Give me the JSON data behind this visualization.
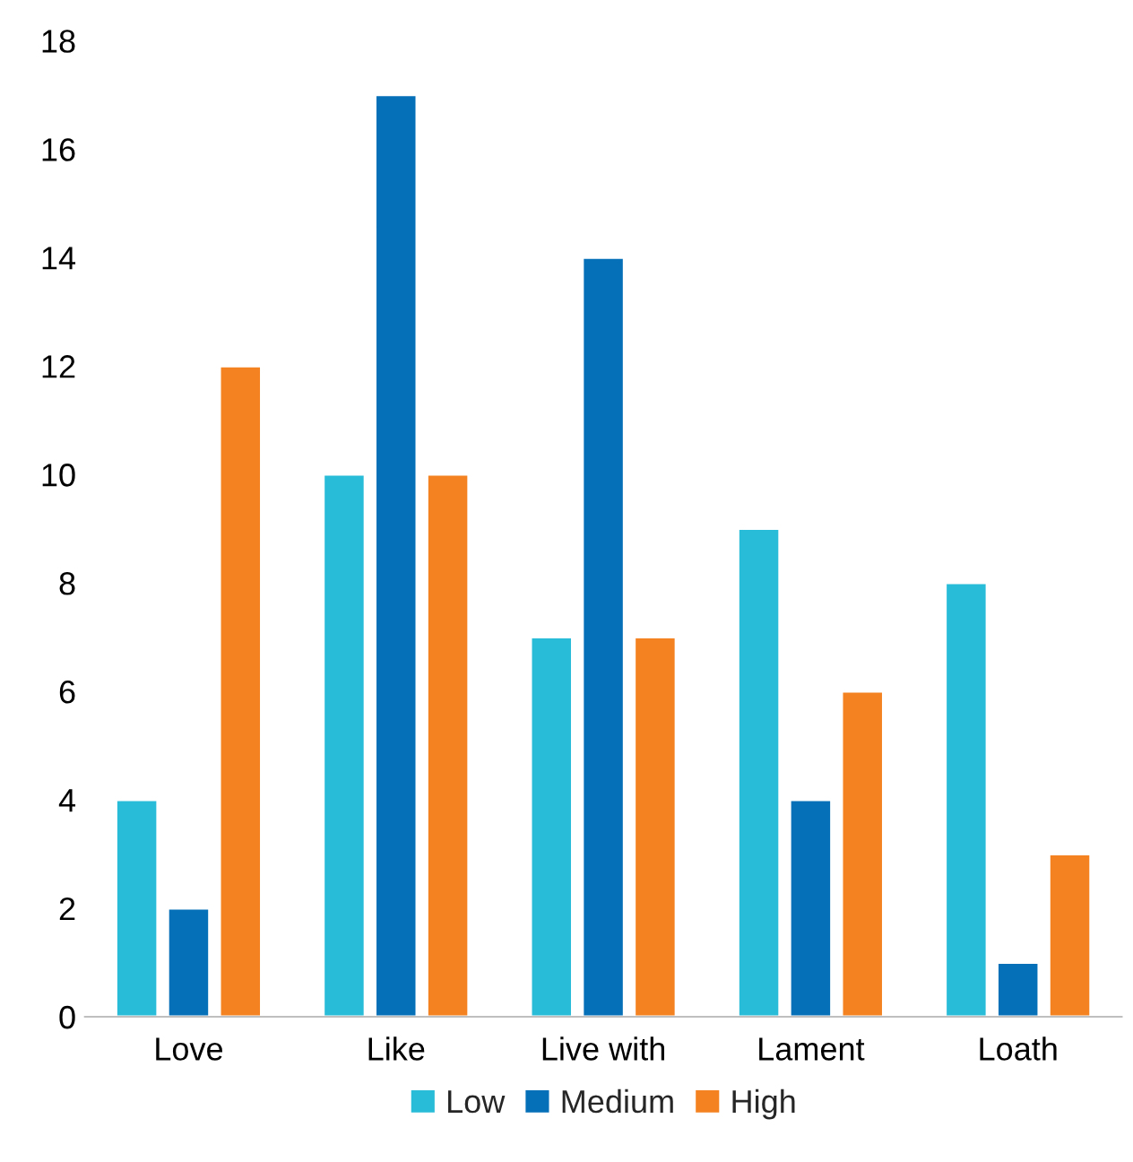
{
  "chart_data": {
    "type": "bar",
    "categories": [
      "Love",
      "Like",
      "Live with",
      "Lament",
      "Loath"
    ],
    "series": [
      {
        "name": "Low",
        "color": "#29bcd8",
        "values": [
          4,
          10,
          7,
          9,
          8
        ]
      },
      {
        "name": "Medium",
        "color": "#056fb8",
        "values": [
          2,
          17,
          14,
          4,
          1
        ]
      },
      {
        "name": "High",
        "color": "#f58220",
        "values": [
          12,
          10,
          7,
          6,
          3
        ]
      }
    ],
    "ylim": [
      0,
      18
    ],
    "yticks": [
      0,
      2,
      4,
      6,
      8,
      10,
      12,
      14,
      16,
      18
    ],
    "grid": false,
    "legend": "bottom"
  }
}
